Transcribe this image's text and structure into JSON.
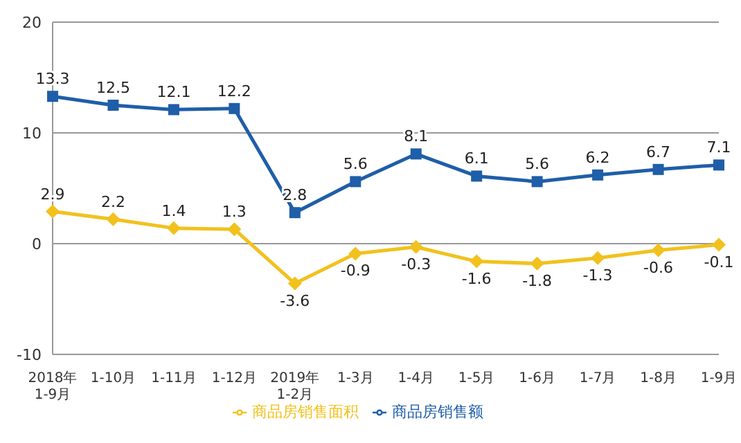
{
  "chart_data": {
    "type": "line",
    "categories": [
      "2018年\n1-9月",
      "1-10月",
      "1-11月",
      "1-12月",
      "2019年\n1-2月",
      "1-3月",
      "1-4月",
      "1-5月",
      "1-6月",
      "1-7月",
      "1-8月",
      "1-9月"
    ],
    "series": [
      {
        "name": "商品房销售面积",
        "color": "#f2c11d",
        "marker": "diamond",
        "values": [
          2.9,
          2.2,
          1.4,
          1.3,
          -3.6,
          -0.9,
          -0.3,
          -1.6,
          -1.8,
          -1.3,
          -0.6,
          -0.1
        ]
      },
      {
        "name": "商品房销售额",
        "color": "#1f5ea8",
        "marker": "square",
        "values": [
          13.3,
          12.5,
          12.1,
          12.2,
          2.8,
          5.6,
          8.1,
          6.1,
          5.6,
          6.2,
          6.7,
          7.1
        ]
      }
    ],
    "ylim": [
      -10,
      20
    ],
    "yticks": [
      -10,
      0,
      10,
      20
    ],
    "grid": "y",
    "legend": "bottom",
    "data_labels": true
  }
}
